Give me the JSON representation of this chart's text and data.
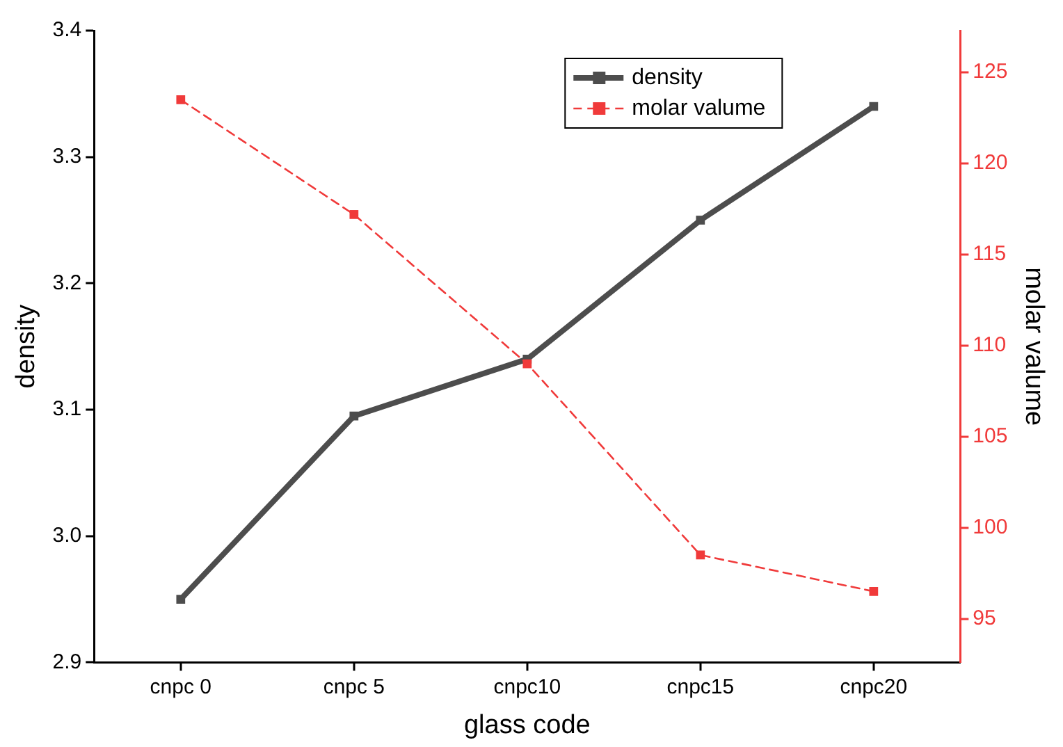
{
  "chart_data": {
    "type": "line",
    "xlabel": "glass code",
    "ylabel": "density",
    "y2label": "molar valume",
    "categories": [
      "cnpc 0",
      "cnpc 5",
      "cnpc10",
      "cnpc15",
      "cnpc20"
    ],
    "series": [
      {
        "name": "density",
        "color": "#4d4d4d",
        "values": [
          2.95,
          3.095,
          3.14,
          3.25,
          3.34
        ],
        "marker": "square",
        "line_style": "solid"
      },
      {
        "name": "molar valume",
        "color": "#f03a3a",
        "axis": "y2",
        "values": [
          123.5,
          117.2,
          109.0,
          98.5,
          96.5
        ],
        "marker": "square",
        "line_style": "dashed"
      }
    ],
    "ylim": [
      2.9,
      3.4
    ],
    "yticks": [
      2.9,
      {
        "value": 3,
        "label": "3.0"
      },
      3.1,
      3.2,
      3.3,
      3.4
    ],
    "y2lim": [
      92.6,
      127.3
    ],
    "y2ticks": [
      95,
      100,
      105,
      110,
      115,
      120,
      125
    ],
    "grid": false,
    "legend": "top right"
  }
}
